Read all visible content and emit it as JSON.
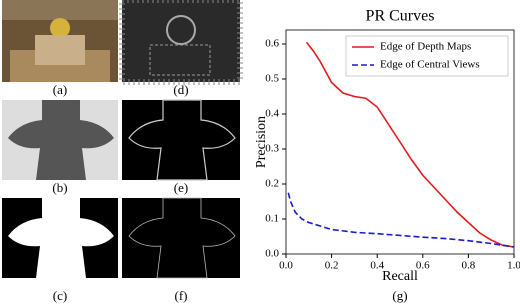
{
  "panels": [
    "(a)",
    "(d)",
    "(b)",
    "(e)",
    "(c)",
    "(f)",
    "(g)"
  ],
  "chart_data": {
    "type": "line",
    "title": "PR Curves",
    "x_label": "Recall",
    "y_label": "Precision",
    "xlim": [
      0,
      1
    ],
    "ylim": [
      0,
      0.64
    ],
    "xticks": [
      {
        "value": 0,
        "label": "0.0"
      },
      0.2,
      0.4,
      0.6,
      0.8,
      {
        "value": 1,
        "label": "1.0"
      }
    ],
    "yticks": [
      {
        "value": 0,
        "label": "0.0"
      },
      0.1,
      0.2,
      0.3,
      0.4,
      0.5,
      0.6
    ],
    "legend": "upper right",
    "series": [
      {
        "name": "Edge of Depth Maps",
        "color": "#e41a1c",
        "style": "solid",
        "x": [
          0.09,
          0.12,
          0.15,
          0.2,
          0.25,
          0.3,
          0.35,
          0.4,
          0.45,
          0.5,
          0.55,
          0.6,
          0.65,
          0.7,
          0.75,
          0.8,
          0.85,
          0.9,
          0.95,
          1.0
        ],
        "values": [
          0.605,
          0.58,
          0.55,
          0.49,
          0.46,
          0.45,
          0.445,
          0.42,
          0.37,
          0.32,
          0.27,
          0.225,
          0.19,
          0.155,
          0.12,
          0.09,
          0.06,
          0.04,
          0.025,
          0.02
        ]
      },
      {
        "name": "Edge of Central Views",
        "color": "#1a1acc",
        "style": "dashed",
        "x": [
          0.01,
          0.02,
          0.04,
          0.07,
          0.1,
          0.15,
          0.2,
          0.3,
          0.4,
          0.5,
          0.6,
          0.7,
          0.8,
          0.9,
          1.0
        ],
        "values": [
          0.175,
          0.15,
          0.12,
          0.1,
          0.09,
          0.08,
          0.07,
          0.062,
          0.058,
          0.053,
          0.048,
          0.044,
          0.038,
          0.03,
          0.02
        ]
      }
    ]
  }
}
